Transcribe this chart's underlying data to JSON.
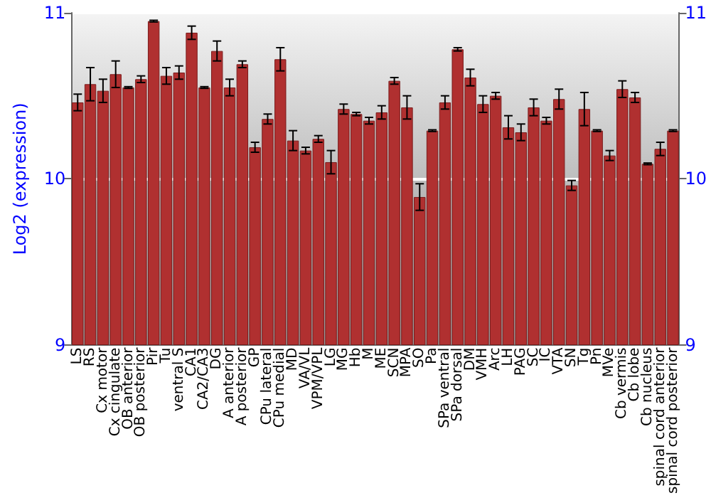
{
  "chart_data": {
    "type": "bar",
    "ylabel": "Log2 (expression)",
    "categories": [
      "LS",
      "RS",
      "Cx motor",
      "Cx cingulate",
      "OB anterior",
      "OB posterior",
      "Pir",
      "Tu",
      "ventral S",
      "CA1",
      "CA2/CA3",
      "DG",
      "A anterior",
      "A posterior",
      "GP",
      "CPu lateral",
      "CPu medial",
      "MD",
      "VA/VL",
      "VPM/VPL",
      "LG",
      "MG",
      "Hb",
      "M",
      "ME",
      "SCN",
      "MPA",
      "SO",
      "Pa",
      "SPa ventral",
      "SPa dorsal",
      "DM",
      "VMH",
      "Arc",
      "LH",
      "PAG",
      "SC",
      "IC",
      "VTA",
      "SN",
      "Tg",
      "Pn",
      "MVe",
      "Cb vermis",
      "Cb lobe",
      "Cb nucleus",
      "spinal cord anterior",
      "spinal cord posterior"
    ],
    "values": [
      10.46,
      10.57,
      10.53,
      10.63,
      10.55,
      10.6,
      10.95,
      10.62,
      10.64,
      10.88,
      10.55,
      10.77,
      10.55,
      10.69,
      10.19,
      10.36,
      10.72,
      10.23,
      10.17,
      10.24,
      10.1,
      10.42,
      10.39,
      10.35,
      10.4,
      10.59,
      10.43,
      9.89,
      10.29,
      10.46,
      10.78,
      10.61,
      10.45,
      10.5,
      10.31,
      10.28,
      10.43,
      10.35,
      10.48,
      9.96,
      10.42,
      10.29,
      10.14,
      10.54,
      10.49,
      10.09,
      10.18,
      10.29
    ],
    "errors": [
      0.05,
      0.1,
      0.07,
      0.08,
      0.005,
      0.02,
      0.005,
      0.05,
      0.04,
      0.04,
      0.005,
      0.06,
      0.05,
      0.02,
      0.03,
      0.03,
      0.07,
      0.06,
      0.02,
      0.02,
      0.07,
      0.03,
      0.01,
      0.02,
      0.04,
      0.02,
      0.07,
      0.08,
      0.005,
      0.04,
      0.01,
      0.05,
      0.05,
      0.02,
      0.07,
      0.05,
      0.05,
      0.02,
      0.06,
      0.03,
      0.1,
      0.005,
      0.03,
      0.05,
      0.03,
      0.005,
      0.04,
      0.005
    ],
    "color": "#b03030",
    "ylim": [
      9,
      11
    ],
    "yticks": [
      9,
      10,
      11
    ],
    "y2lim": [
      9,
      11
    ],
    "y2ticks": [
      9,
      10,
      11
    ],
    "grid": "y"
  }
}
